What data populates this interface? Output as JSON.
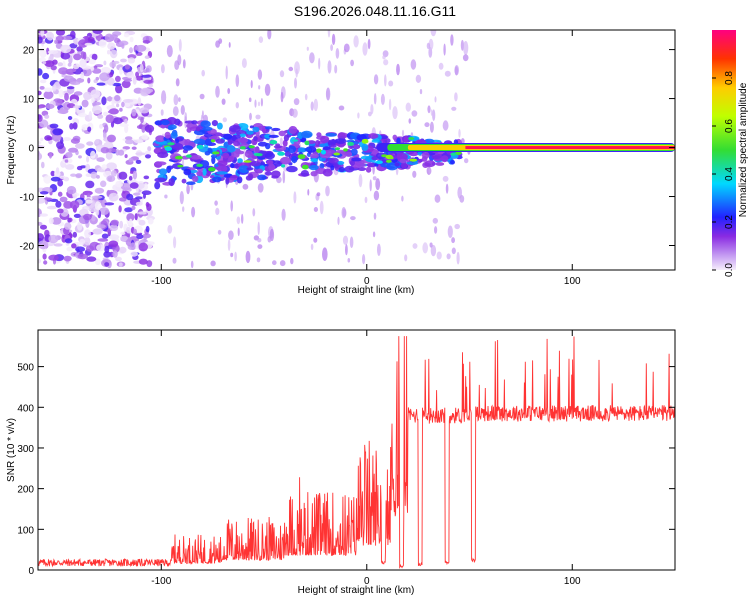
{
  "title": "S196.2026.048.11.16.G11",
  "chart_data": [
    {
      "type": "heatmap",
      "name": "spectrogram",
      "xlabel": "Height of straight line (km)",
      "ylabel": "Frequency (Hz)",
      "xlim": [
        -160,
        150
      ],
      "ylim": [
        -25,
        24
      ],
      "xticks": [
        -100,
        0,
        100
      ],
      "xtick_labels": [
        "-100",
        "0",
        "100"
      ],
      "yticks": [
        -20,
        -10,
        0,
        10,
        20
      ],
      "ytick_labels": [
        "-20",
        "-10",
        "0",
        "10",
        "20"
      ],
      "colorbar": {
        "label": "Normalized spectral amplitude",
        "range": [
          0,
          1
        ],
        "ticks": [
          0.0,
          0.2,
          0.4,
          0.6,
          0.8
        ],
        "tick_labels": [
          "0.0",
          "0.2",
          "0.4",
          "0.6",
          "0.8"
        ]
      },
      "description_regions": [
        {
          "x_range": [
            -160,
            -105
          ],
          "freq_spread": 24,
          "amplitude": 0.15
        },
        {
          "x_range": [
            -103,
            45
          ],
          "freq_spread": 7,
          "amplitude": 0.3
        },
        {
          "x_range": [
            48,
            150
          ],
          "freq": 0,
          "amplitude": 1.0
        }
      ]
    },
    {
      "type": "line",
      "name": "snr",
      "xlabel": "Height of straight line (km)",
      "ylabel": "SNR (10 * v/v)",
      "xlim": [
        -160,
        150
      ],
      "ylim": [
        0,
        590
      ],
      "xticks": [
        -100,
        0,
        100
      ],
      "xtick_labels": [
        "-100",
        "0",
        "100"
      ],
      "yticks": [
        0,
        100,
        200,
        300,
        400,
        500
      ],
      "ytick_labels": [
        "0",
        "100",
        "200",
        "300",
        "400",
        "500"
      ],
      "color": "#ff3333",
      "baseline_segments": [
        {
          "x": [
            -160,
            -95
          ],
          "level": 18
        },
        {
          "x": [
            -95,
            -70
          ],
          "level": 40
        },
        {
          "x": [
            -70,
            -40
          ],
          "level": 60
        },
        {
          "x": [
            -40,
            -5
          ],
          "level": 90
        },
        {
          "x": [
            -5,
            12
          ],
          "level": 150
        },
        {
          "x": [
            12,
            20
          ],
          "level": 330
        },
        {
          "x": [
            20,
            53
          ],
          "level": 380
        },
        {
          "x": [
            53,
            110
          ],
          "level": 385
        },
        {
          "x": [
            110,
            150
          ],
          "level": 385
        }
      ],
      "dropouts": [
        {
          "x": 8,
          "value": 15
        },
        {
          "x": 17,
          "value": 5
        },
        {
          "x": 26,
          "value": 10
        },
        {
          "x": 39,
          "value": 15
        },
        {
          "x": 52,
          "value": 20
        }
      ],
      "peaks_max": 575
    }
  ]
}
